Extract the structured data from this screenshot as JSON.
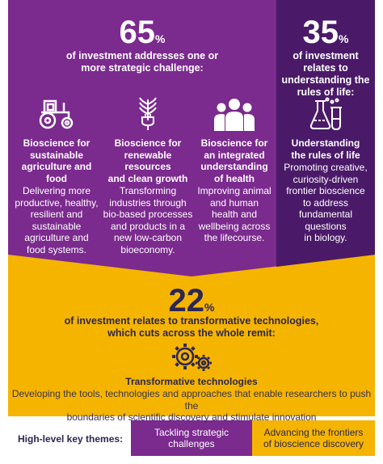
{
  "colors": {
    "purple": "#7b2a8e",
    "dark_purple": "#4a1a68",
    "yellow": "#f5b400",
    "navy": "#2d2650",
    "white": "#ffffff"
  },
  "strategic": {
    "percent": "65",
    "percent_sign": "%",
    "line1": "of investment addresses one or",
    "line2": "more strategic challenge:"
  },
  "frontier": {
    "percent": "35",
    "percent_sign": "%",
    "lines": [
      "of investment",
      "relates to",
      "understanding the",
      "rules of life:"
    ],
    "icon": "lab-flasks-icon",
    "title_lines": [
      "Understanding",
      "the rules of life"
    ],
    "desc_lines": [
      "Promoting creative,",
      "curiosity-driven",
      "frontier bioscience",
      "to address",
      "fundamental",
      "questions",
      "in biology."
    ]
  },
  "challenges": [
    {
      "icon": "tractor-icon",
      "title_lines": [
        "Bioscience for",
        "sustainable",
        "agriculture and food"
      ],
      "desc_lines": [
        "Delivering more",
        "productive, healthy,",
        "resilient and",
        "sustainable",
        "agriculture and",
        "food systems."
      ]
    },
    {
      "icon": "plant-plug-icon",
      "title_lines": [
        "Bioscience for",
        "renewable resources",
        "and clean growth"
      ],
      "desc_lines": [
        "Transforming",
        "industries through",
        "bio-based processes",
        "and products in a",
        "new low-carbon",
        "bioeconomy."
      ]
    },
    {
      "icon": "people-group-icon",
      "title_lines": [
        "Bioscience for",
        "an integrated",
        "understanding",
        "of health"
      ],
      "desc_lines": [
        "Improving animal",
        "and human",
        "health and",
        "wellbeing across",
        "the lifecourse."
      ]
    }
  ],
  "transformative": {
    "percent": "22",
    "percent_sign": "%",
    "line1": "of investment relates to transformative technologies,",
    "line2": "which cuts across the whole remit:",
    "icon": "gears-icon",
    "title": "Transformative technologies",
    "desc_line1": "Developing the tools, technologies and approaches that enable researchers to push the",
    "desc_line2": "boundaries of scientific discovery and stimulate innovation"
  },
  "legend": {
    "label": "High-level key themes:",
    "item1_lines": [
      "Tackling strategic",
      "challenges"
    ],
    "item2_lines": [
      "Advancing the frontiers",
      "of bioscience discovery"
    ]
  }
}
